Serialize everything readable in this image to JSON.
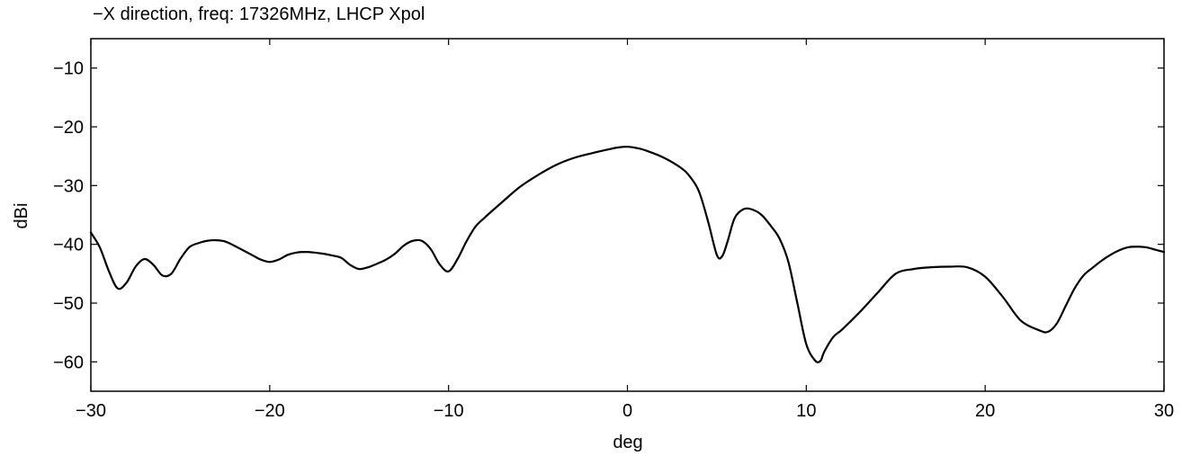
{
  "chart_data": {
    "type": "line",
    "title": "−X direction, freq: 17326MHz,  LHCP Xpol",
    "xlabel": "deg",
    "ylabel": "dBi",
    "xlim": [
      -30,
      30
    ],
    "ylim": [
      -65,
      -5
    ],
    "xticks": [
      -30,
      -20,
      -10,
      0,
      10,
      20,
      30
    ],
    "xtick_labels": [
      "−30",
      "−20",
      "−10",
      "0",
      "10",
      "20",
      "30"
    ],
    "yticks": [
      -10,
      -20,
      -30,
      -40,
      -50,
      -60
    ],
    "ytick_labels": [
      "−10",
      "−20",
      "−30",
      "−40",
      "−50",
      "−60"
    ],
    "grid": false,
    "legend": "none",
    "line_color": "#000000",
    "series": [
      {
        "x": [
          -30,
          -29.5,
          -29,
          -28.5,
          -28,
          -27.5,
          -27,
          -26.5,
          -26,
          -25.5,
          -25,
          -24.5,
          -24,
          -23.5,
          -23,
          -22.5,
          -22,
          -21.5,
          -21,
          -20.5,
          -20,
          -19.5,
          -19,
          -18.5,
          -18,
          -17.5,
          -17,
          -16.5,
          -16,
          -15.5,
          -15,
          -14.5,
          -14,
          -13.5,
          -13,
          -12.5,
          -12,
          -11.5,
          -11,
          -10.5,
          -10,
          -9.5,
          -9,
          -8.5,
          -8,
          -7,
          -6,
          -5,
          -4,
          -3,
          -2,
          -1,
          -0.5,
          0,
          0.5,
          1,
          2,
          3,
          3.5,
          4,
          4.5,
          5,
          5.3,
          5.6,
          6,
          6.5,
          7,
          7.5,
          8,
          8.5,
          9,
          9.5,
          10,
          10.5,
          10.8,
          11,
          11.5,
          12,
          13,
          14,
          15,
          16,
          17,
          18,
          19,
          20,
          21,
          22,
          23,
          23.5,
          24,
          24.5,
          25,
          25.5,
          26,
          26.5,
          27,
          27.5,
          28,
          28.5,
          29,
          29.5,
          30
        ],
        "y": [
          -38,
          -40.5,
          -44.5,
          -47.5,
          -46.5,
          -43.8,
          -42.5,
          -43.5,
          -45.3,
          -45,
          -42.5,
          -40.5,
          -39.8,
          -39.4,
          -39.3,
          -39.5,
          -40.2,
          -41,
          -41.8,
          -42.6,
          -43,
          -42.6,
          -41.8,
          -41.4,
          -41.3,
          -41.4,
          -41.6,
          -41.9,
          -42.3,
          -43.5,
          -44.2,
          -43.9,
          -43.3,
          -42.6,
          -41.6,
          -40.2,
          -39.4,
          -39.4,
          -40.8,
          -43.4,
          -44.6,
          -42.5,
          -39.5,
          -37,
          -35.5,
          -32.8,
          -30.2,
          -28.2,
          -26.5,
          -25.3,
          -24.5,
          -23.8,
          -23.5,
          -23.4,
          -23.6,
          -24,
          -25.2,
          -27,
          -28.5,
          -31,
          -36,
          -41.8,
          -42,
          -39.5,
          -35.5,
          -34,
          -34.1,
          -35,
          -36.8,
          -39,
          -43,
          -50,
          -57,
          -59.8,
          -59.8,
          -58.3,
          -55.8,
          -54.5,
          -51.5,
          -48.2,
          -45,
          -44.2,
          -43.9,
          -43.8,
          -43.9,
          -45.5,
          -49,
          -53,
          -54.6,
          -54.9,
          -53.5,
          -50.5,
          -47.5,
          -45.3,
          -44,
          -42.8,
          -41.8,
          -41,
          -40.5,
          -40.4,
          -40.5,
          -40.9,
          -41.3
        ]
      }
    ]
  }
}
